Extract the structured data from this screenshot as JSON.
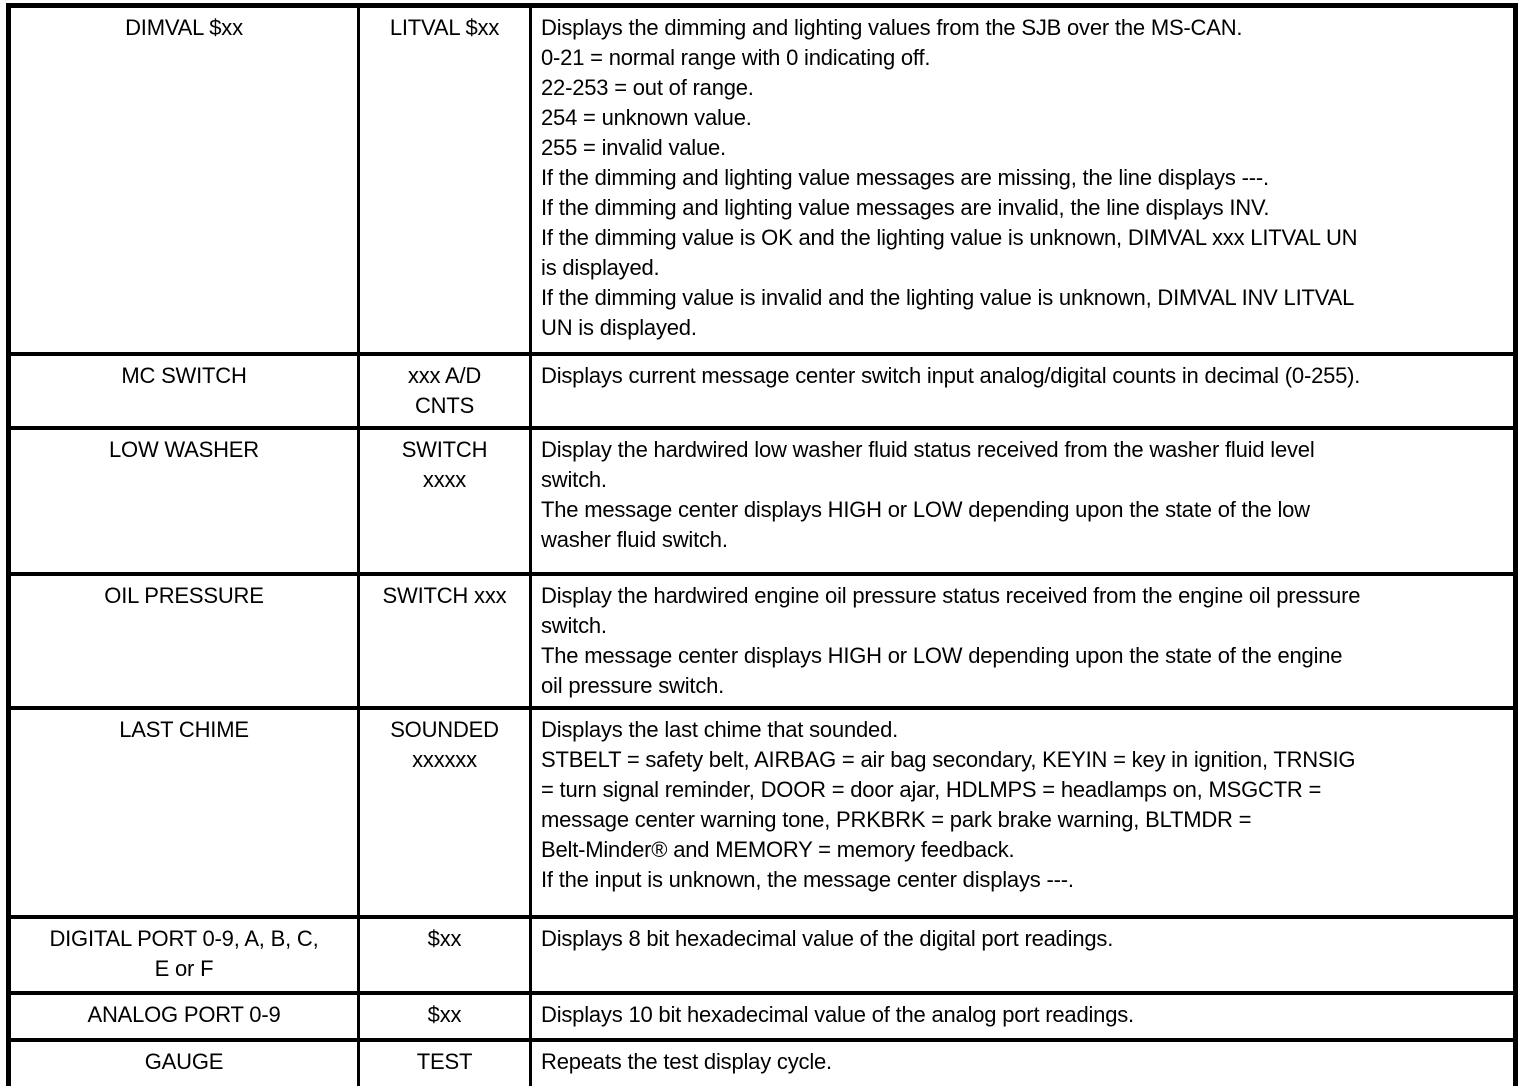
{
  "colors": {
    "border": "#000000",
    "text": "#000000",
    "background": "#ffffff"
  },
  "rows": [
    {
      "item": "DIMVAL $xx",
      "value": "LITVAL $xx",
      "desc": "Displays the dimming and lighting values from the SJB over the MS-CAN.\n0-21 = normal range with 0 indicating off.\n22-253 = out of range.\n254 = unknown value.\n255 = invalid value.\nIf the dimming and lighting value messages are missing, the line displays ---.\nIf the dimming and lighting value messages are invalid, the line displays INV.\nIf the dimming value is OK and the lighting value is unknown, DIMVAL xxx LITVAL UN\nis displayed.\nIf the dimming value is invalid and the lighting value is unknown, DIMVAL INV LITVAL\nUN is displayed."
    },
    {
      "item": "MC SWITCH",
      "value": "xxx A/D\nCNTS",
      "desc": "Displays current message center switch input analog/digital counts in decimal (0-255)."
    },
    {
      "item": "LOW WASHER",
      "value": "SWITCH\nxxxx",
      "desc": "Display the hardwired low washer fluid status received from the washer fluid level\nswitch.\nThe message center displays HIGH or LOW depending upon the state of the low\nwasher fluid switch."
    },
    {
      "item": "OIL PRESSURE",
      "value": "SWITCH xxx",
      "desc": "Display the hardwired engine oil pressure status received from the engine oil pressure\nswitch.\nThe message center displays HIGH or LOW depending upon the state of the engine\noil pressure switch."
    },
    {
      "item": "LAST CHIME",
      "value": "SOUNDED\nxxxxxx",
      "desc": "Displays the last chime that sounded.\nSTBELT = safety belt, AIRBAG = air bag secondary, KEYIN = key in ignition, TRNSIG\n= turn signal reminder, DOOR = door ajar, HDLMPS = headlamps on, MSGCTR =\nmessage center warning tone, PRKBRK = park brake warning, BLTMDR =\nBelt-Minder® and MEMORY = memory feedback.\nIf the input is unknown, the message center displays ---."
    },
    {
      "item": "DIGITAL PORT 0-9, A, B, C,\nE or F",
      "value": "$xx",
      "desc": "Displays 8 bit hexadecimal value of the digital port readings."
    },
    {
      "item": "ANALOG PORT 0-9",
      "value": "$xx",
      "desc": "Displays 10 bit hexadecimal value of the analog port readings."
    },
    {
      "item": "GAUGE",
      "value": "TEST",
      "desc": "Repeats the test display cycle."
    }
  ]
}
